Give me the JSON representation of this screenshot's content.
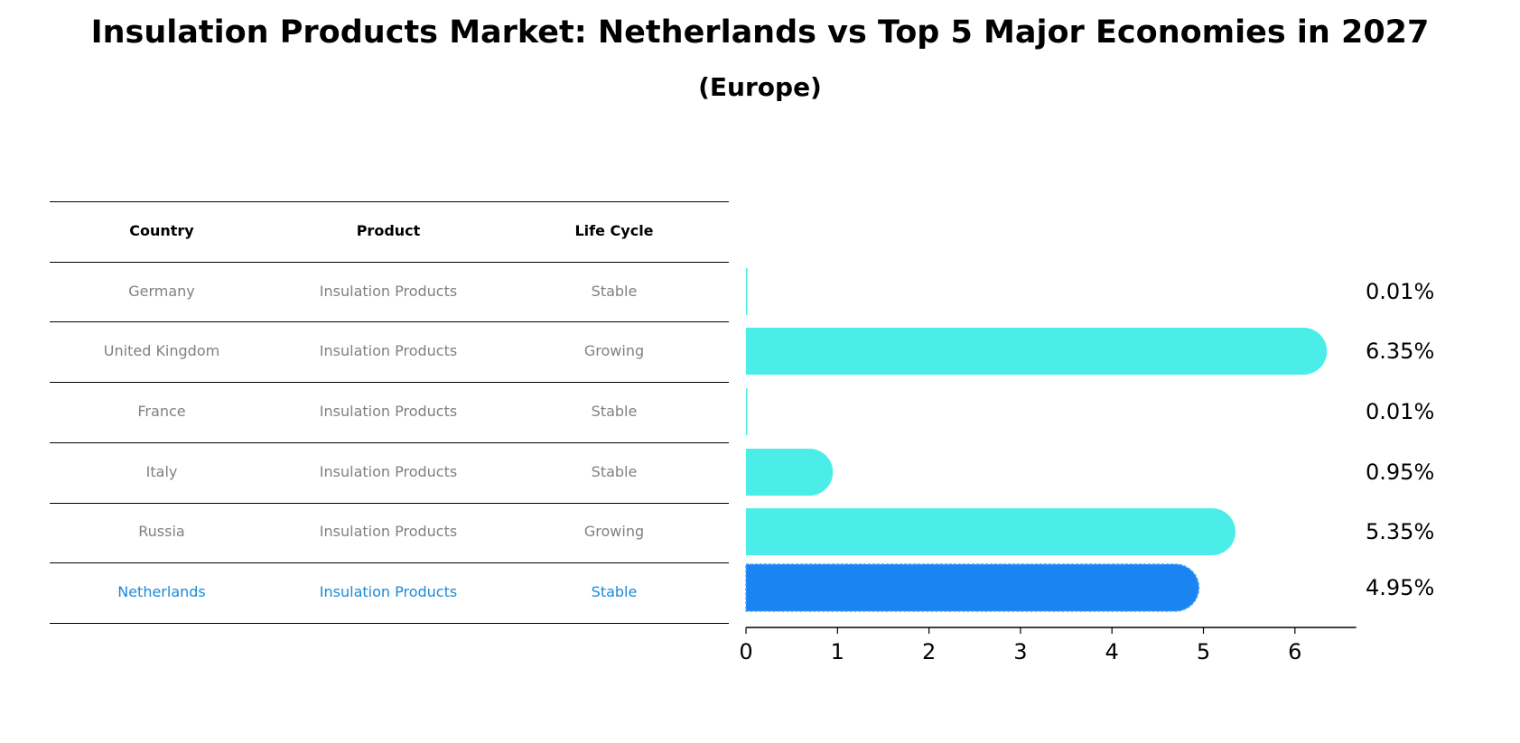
{
  "title": "Insulation Products Market: Netherlands vs Top 5 Major Economies in 2027",
  "subtitle": "(Europe)",
  "table": {
    "headers": [
      "Country",
      "Product",
      "Life Cycle"
    ],
    "rows": [
      {
        "country": "Germany",
        "product": "Insulation Products",
        "life_cycle": "Stable"
      },
      {
        "country": "United Kingdom",
        "product": "Insulation Products",
        "life_cycle": "Growing"
      },
      {
        "country": "France",
        "product": "Insulation Products",
        "life_cycle": "Stable"
      },
      {
        "country": "Italy",
        "product": "Insulation Products",
        "life_cycle": "Stable"
      },
      {
        "country": "Russia",
        "product": "Insulation Products",
        "life_cycle": "Growing"
      },
      {
        "country": "Netherlands",
        "product": "Insulation Products",
        "life_cycle": "Stable"
      }
    ],
    "highlight_row": 5
  },
  "chart_data": {
    "type": "bar",
    "orientation": "horizontal",
    "categories": [
      "Germany",
      "United Kingdom",
      "France",
      "Italy",
      "Russia",
      "Netherlands"
    ],
    "values": [
      0.01,
      6.35,
      0.01,
      0.95,
      5.35,
      4.95
    ],
    "value_labels": [
      "0.01%",
      "6.35%",
      "0.01%",
      "0.95%",
      "5.35%",
      "4.95%"
    ],
    "xlim": [
      0,
      6.67
    ],
    "xticks": [
      0,
      1,
      2,
      3,
      4,
      5,
      6
    ],
    "highlight_index": 5,
    "colors": {
      "default": "#4bede9",
      "highlight": "#1a85f2"
    }
  }
}
